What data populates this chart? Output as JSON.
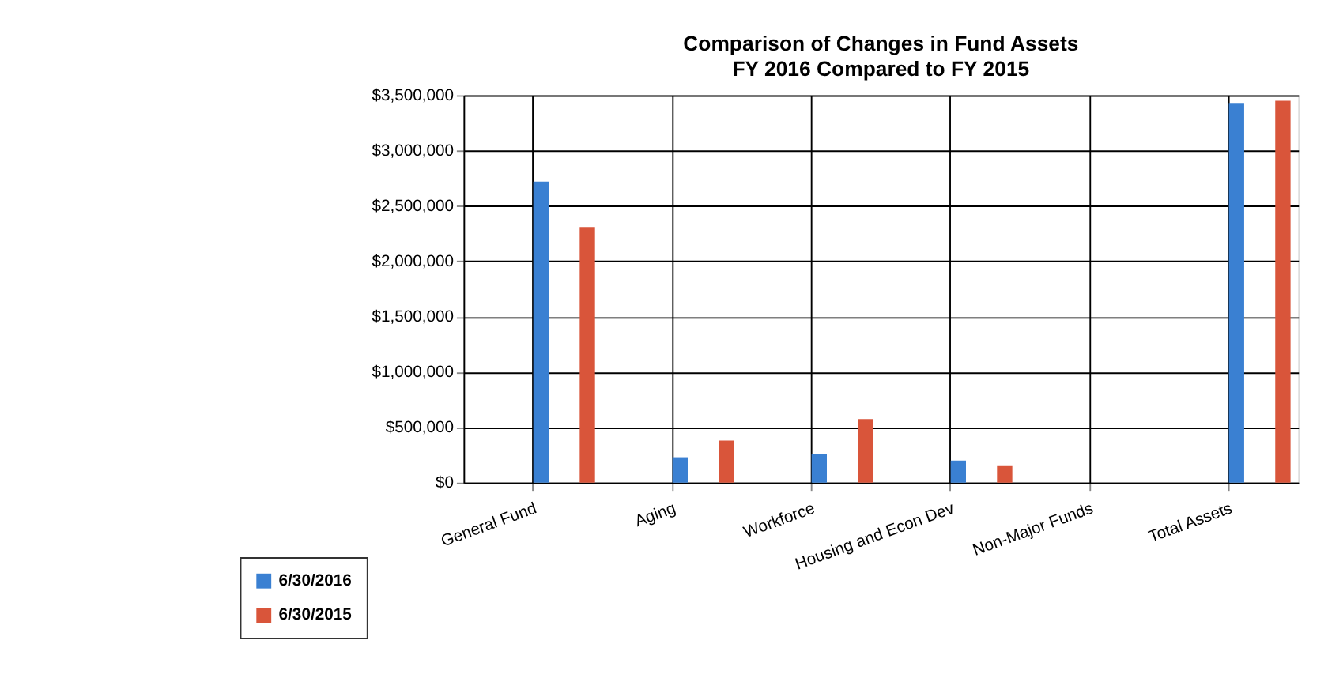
{
  "chart_data": {
    "type": "bar",
    "title": "Comparison of Changes in Fund Assets",
    "subtitle": "FY 2016 Compared to FY 2015",
    "categories": [
      "General Fund",
      "Aging",
      "Workforce",
      "Housing and Econ Dev",
      "Non-Major Funds",
      "Total Assets"
    ],
    "series": [
      {
        "name": "6/30/2016",
        "color": "#3a80d2",
        "values": [
          2720000,
          230000,
          260000,
          200000,
          0,
          3430000
        ]
      },
      {
        "name": "6/30/2015",
        "color": "#d9553a",
        "values": [
          2310000,
          380000,
          575000,
          150000,
          0,
          3450000
        ]
      }
    ],
    "ylim": [
      0,
      3500000
    ],
    "yticks": [
      {
        "value": 0,
        "label": "$0"
      },
      {
        "value": 500000,
        "label": "$500,000"
      },
      {
        "value": 1000000,
        "label": "$1,000,000"
      },
      {
        "value": 1500000,
        "label": "$1,500,000"
      },
      {
        "value": 2000000,
        "label": "$2,000,000"
      },
      {
        "value": 2500000,
        "label": "$2,500,000"
      },
      {
        "value": 3000000,
        "label": "$3,000,000"
      },
      {
        "value": 3500000,
        "label": "$3,500,000"
      }
    ],
    "grid": true,
    "legend": "bottom left"
  }
}
